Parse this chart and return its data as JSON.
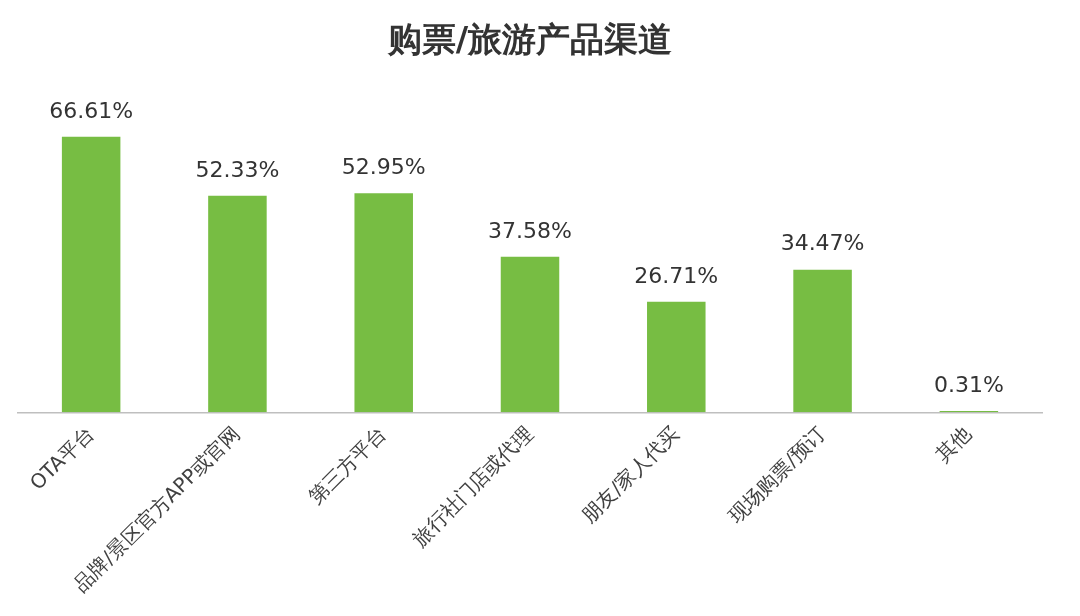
{
  "chart_data": {
    "type": "bar",
    "title": "购票/旅游产品渠道",
    "categories": [
      "OTA平台",
      "品牌/景区官方APP或官网",
      "第三方平台",
      "旅行社门店或代理",
      "朋友/家人代买",
      "现场购票/预订",
      "其他"
    ],
    "values": [
      66.61,
      52.33,
      52.95,
      37.58,
      26.71,
      34.47,
      0.31
    ],
    "value_labels": [
      "66.61%",
      "52.33%",
      "52.95%",
      "37.58%",
      "26.71%",
      "34.47%",
      "0.31%"
    ],
    "color": "#77bd43",
    "grid": false,
    "legend": false,
    "tick_labels": "x"
  }
}
